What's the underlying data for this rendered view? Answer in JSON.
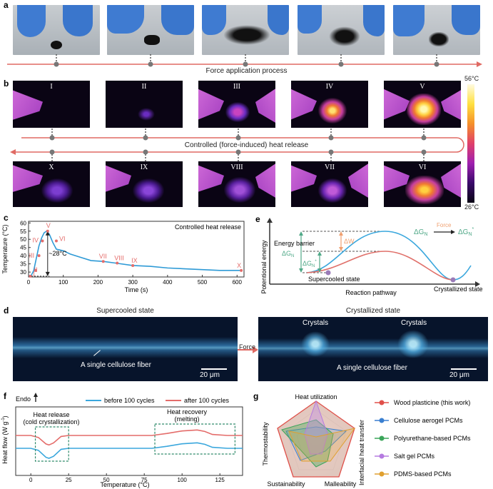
{
  "panel_labels": {
    "a": "a",
    "b": "b",
    "c": "c",
    "d": "d",
    "e": "e",
    "f": "f",
    "g": "g"
  },
  "panel_a": {
    "caption": "Force application process"
  },
  "panel_b": {
    "top_labels": [
      "I",
      "II",
      "III",
      "IV",
      "V"
    ],
    "bottom_labels": [
      "X",
      "IX",
      "VIII",
      "VII",
      "VI"
    ],
    "caption": "Controlled (force-induced) heat release",
    "colorbar_max": "56°C",
    "colorbar_min": "26°C"
  },
  "panel_c": {
    "annotation": "Controlled heat release",
    "delta_label": "~28°C",
    "chart_data": {
      "type": "line",
      "xlabel": "Time (s)",
      "ylabel": "Temperature (°C)",
      "xlim": [
        0,
        620
      ],
      "ylim": [
        27,
        61
      ],
      "xticks": [
        0,
        100,
        200,
        300,
        400,
        500,
        600
      ],
      "yticks": [
        30,
        35,
        40,
        45,
        50,
        55,
        60
      ],
      "x": [
        0,
        8,
        15,
        22,
        30,
        38,
        45,
        52,
        60,
        70,
        80,
        100,
        120,
        150,
        180,
        215,
        250,
        300,
        350,
        400,
        450,
        500,
        550,
        612
      ],
      "y": [
        27.5,
        28,
        31,
        38,
        46,
        51,
        54,
        55,
        53,
        48,
        44,
        43,
        41,
        39,
        37,
        36.5,
        35.5,
        34,
        33.5,
        32.5,
        32,
        31.5,
        31,
        31
      ],
      "markers": [
        {
          "label": "I",
          "x": 5,
          "y": 27.5
        },
        {
          "label": "II",
          "x": 20,
          "y": 31
        },
        {
          "label": "III",
          "x": 30,
          "y": 40
        },
        {
          "label": "IV",
          "x": 40,
          "y": 49
        },
        {
          "label": "V",
          "x": 55,
          "y": 55
        },
        {
          "label": "VI",
          "x": 80,
          "y": 49
        },
        {
          "label": "VII",
          "x": 215,
          "y": 36.5
        },
        {
          "label": "VIII",
          "x": 255,
          "y": 35.5
        },
        {
          "label": "IX",
          "x": 300,
          "y": 34
        },
        {
          "label": "X",
          "x": 612,
          "y": 31
        }
      ]
    }
  },
  "panel_d": {
    "left_title": "Supercooled state",
    "right_title": "Crystallized state",
    "left_fiber": "A single cellulose fiber",
    "right_fiber": "A single cellulose fiber",
    "scale": "20 μm",
    "arrow": "Force",
    "crystals": "Crystals"
  },
  "panel_e": {
    "ylabel": "Potentional energy",
    "xlabel": "Reaction pathway",
    "energy_barrier": "Energy barrier",
    "dGN": "ΔG",
    "dGN_prime": "ΔG",
    "dW": "ΔW",
    "force": "Force",
    "supercooled": "Supercooled state",
    "crystallized": "Crystallized state",
    "sub": "N",
    "sup": "*",
    "colors": {
      "blue": "#3aa7dd",
      "red": "#e0706a",
      "green": "#4fa887",
      "orange": "#f0a070"
    }
  },
  "panel_f": {
    "endo": "Endo",
    "ylabel": "Heat flow (W g",
    "ylabel_sup": "-1",
    "ylabel_end": ")",
    "legend_before": "before 100 cycles",
    "legend_after": "after 100 cycles",
    "box1_line1": "Heat release",
    "box1_line2": "(cold crystallization)",
    "box2_line1": "Heat recovery",
    "box2_line2": "(melting)",
    "chart_data": {
      "type": "line",
      "xlabel": "Temperature (°C)",
      "xlim": [
        -10,
        140
      ],
      "xticks": [
        0,
        25,
        50,
        75,
        100,
        125
      ],
      "series": [
        {
          "name": "before 100 cycles",
          "color": "#3aa7dd",
          "x": [
            -10,
            0,
            5,
            10,
            12,
            15,
            20,
            25,
            50,
            80,
            90,
            100,
            110,
            115,
            120,
            130,
            140
          ],
          "y": [
            0,
            0,
            -0.2,
            -0.9,
            -1.0,
            -0.8,
            -0.1,
            0,
            0,
            0,
            0.2,
            0.45,
            0.55,
            0.4,
            0.1,
            0,
            0
          ]
        },
        {
          "name": "after 100 cycles",
          "color": "#e46c6a",
          "x": [
            -10,
            0,
            5,
            10,
            12,
            15,
            20,
            25,
            50,
            80,
            90,
            100,
            110,
            115,
            120,
            130,
            140
          ],
          "y": [
            0,
            0,
            -0.2,
            -0.85,
            -0.95,
            -0.75,
            -0.1,
            0,
            0,
            0,
            0.2,
            0.45,
            0.55,
            0.4,
            0.1,
            0,
            0
          ]
        }
      ]
    }
  },
  "panel_g": {
    "axes": [
      "Heat utilization",
      "Interfacial heat transfer",
      "Malleability",
      "Sustainability",
      "Thermostability"
    ],
    "legend": [
      {
        "name": "Wood plasticine (this work)",
        "color": "#e0504a"
      },
      {
        "name": "Cellulose aerogel PCMs",
        "color": "#3a7fd0"
      },
      {
        "name": "Polyurethane-based PCMs",
        "color": "#3aa55a"
      },
      {
        "name": "Salt gel PCMs",
        "color": "#b57be0"
      },
      {
        "name": "PDMS-based PCMs",
        "color": "#e0a030"
      }
    ]
  }
}
